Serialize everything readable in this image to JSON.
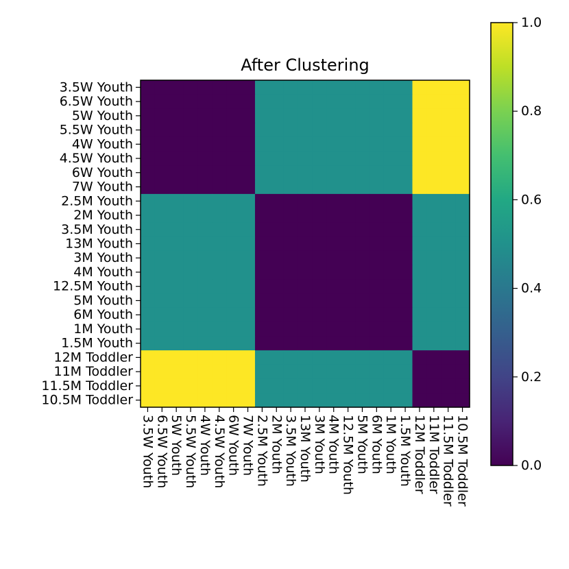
{
  "chart_data": {
    "type": "heatmap",
    "title": "After Clustering",
    "labels": [
      "3.5W Youth",
      "6.5W Youth",
      "5W Youth",
      "5.5W Youth",
      "4W Youth",
      "4.5W Youth",
      "6W Youth",
      "7W Youth",
      "2.5M Youth",
      "2M Youth",
      "3.5M Youth",
      "13M Youth",
      "3M Youth",
      "4M Youth",
      "12.5M Youth",
      "5M Youth",
      "6M Youth",
      "1M Youth",
      "1.5M Youth",
      "12M Toddler",
      "11M Toddler",
      "11.5M Toddler",
      "10.5M Toddler"
    ],
    "x_labels": [
      "3.5W Youth",
      "6.5W Youth",
      "5W Youth",
      "5.5W Youth",
      "4W Youth",
      "4.5W Youth",
      "6W Youth",
      "7W Youth",
      "2.5M Youth",
      "2M Youth",
      "3.5M Youth",
      "13M Youth",
      "3M Youth",
      "4M Youth",
      "12.5M Youth",
      "5M Youth",
      "6M Youth",
      "1M Youth",
      "1.5M Youth",
      "12M Toddler",
      "11M Toddler",
      "11.5M Toddler",
      "10.5M Toddler"
    ],
    "groups": [
      8,
      11,
      4
    ],
    "block_values": [
      [
        0.0,
        0.5,
        1.0
      ],
      [
        0.5,
        0.0,
        0.5
      ],
      [
        1.0,
        0.5,
        0.0
      ]
    ],
    "colorbar": {
      "min": 0.0,
      "max": 1.0,
      "ticks": [
        "0.0",
        "0.2",
        "0.4",
        "0.6",
        "0.8",
        "1.0"
      ],
      "colormap": "viridis"
    },
    "xlabel": "",
    "ylabel": "",
    "grid": false
  }
}
